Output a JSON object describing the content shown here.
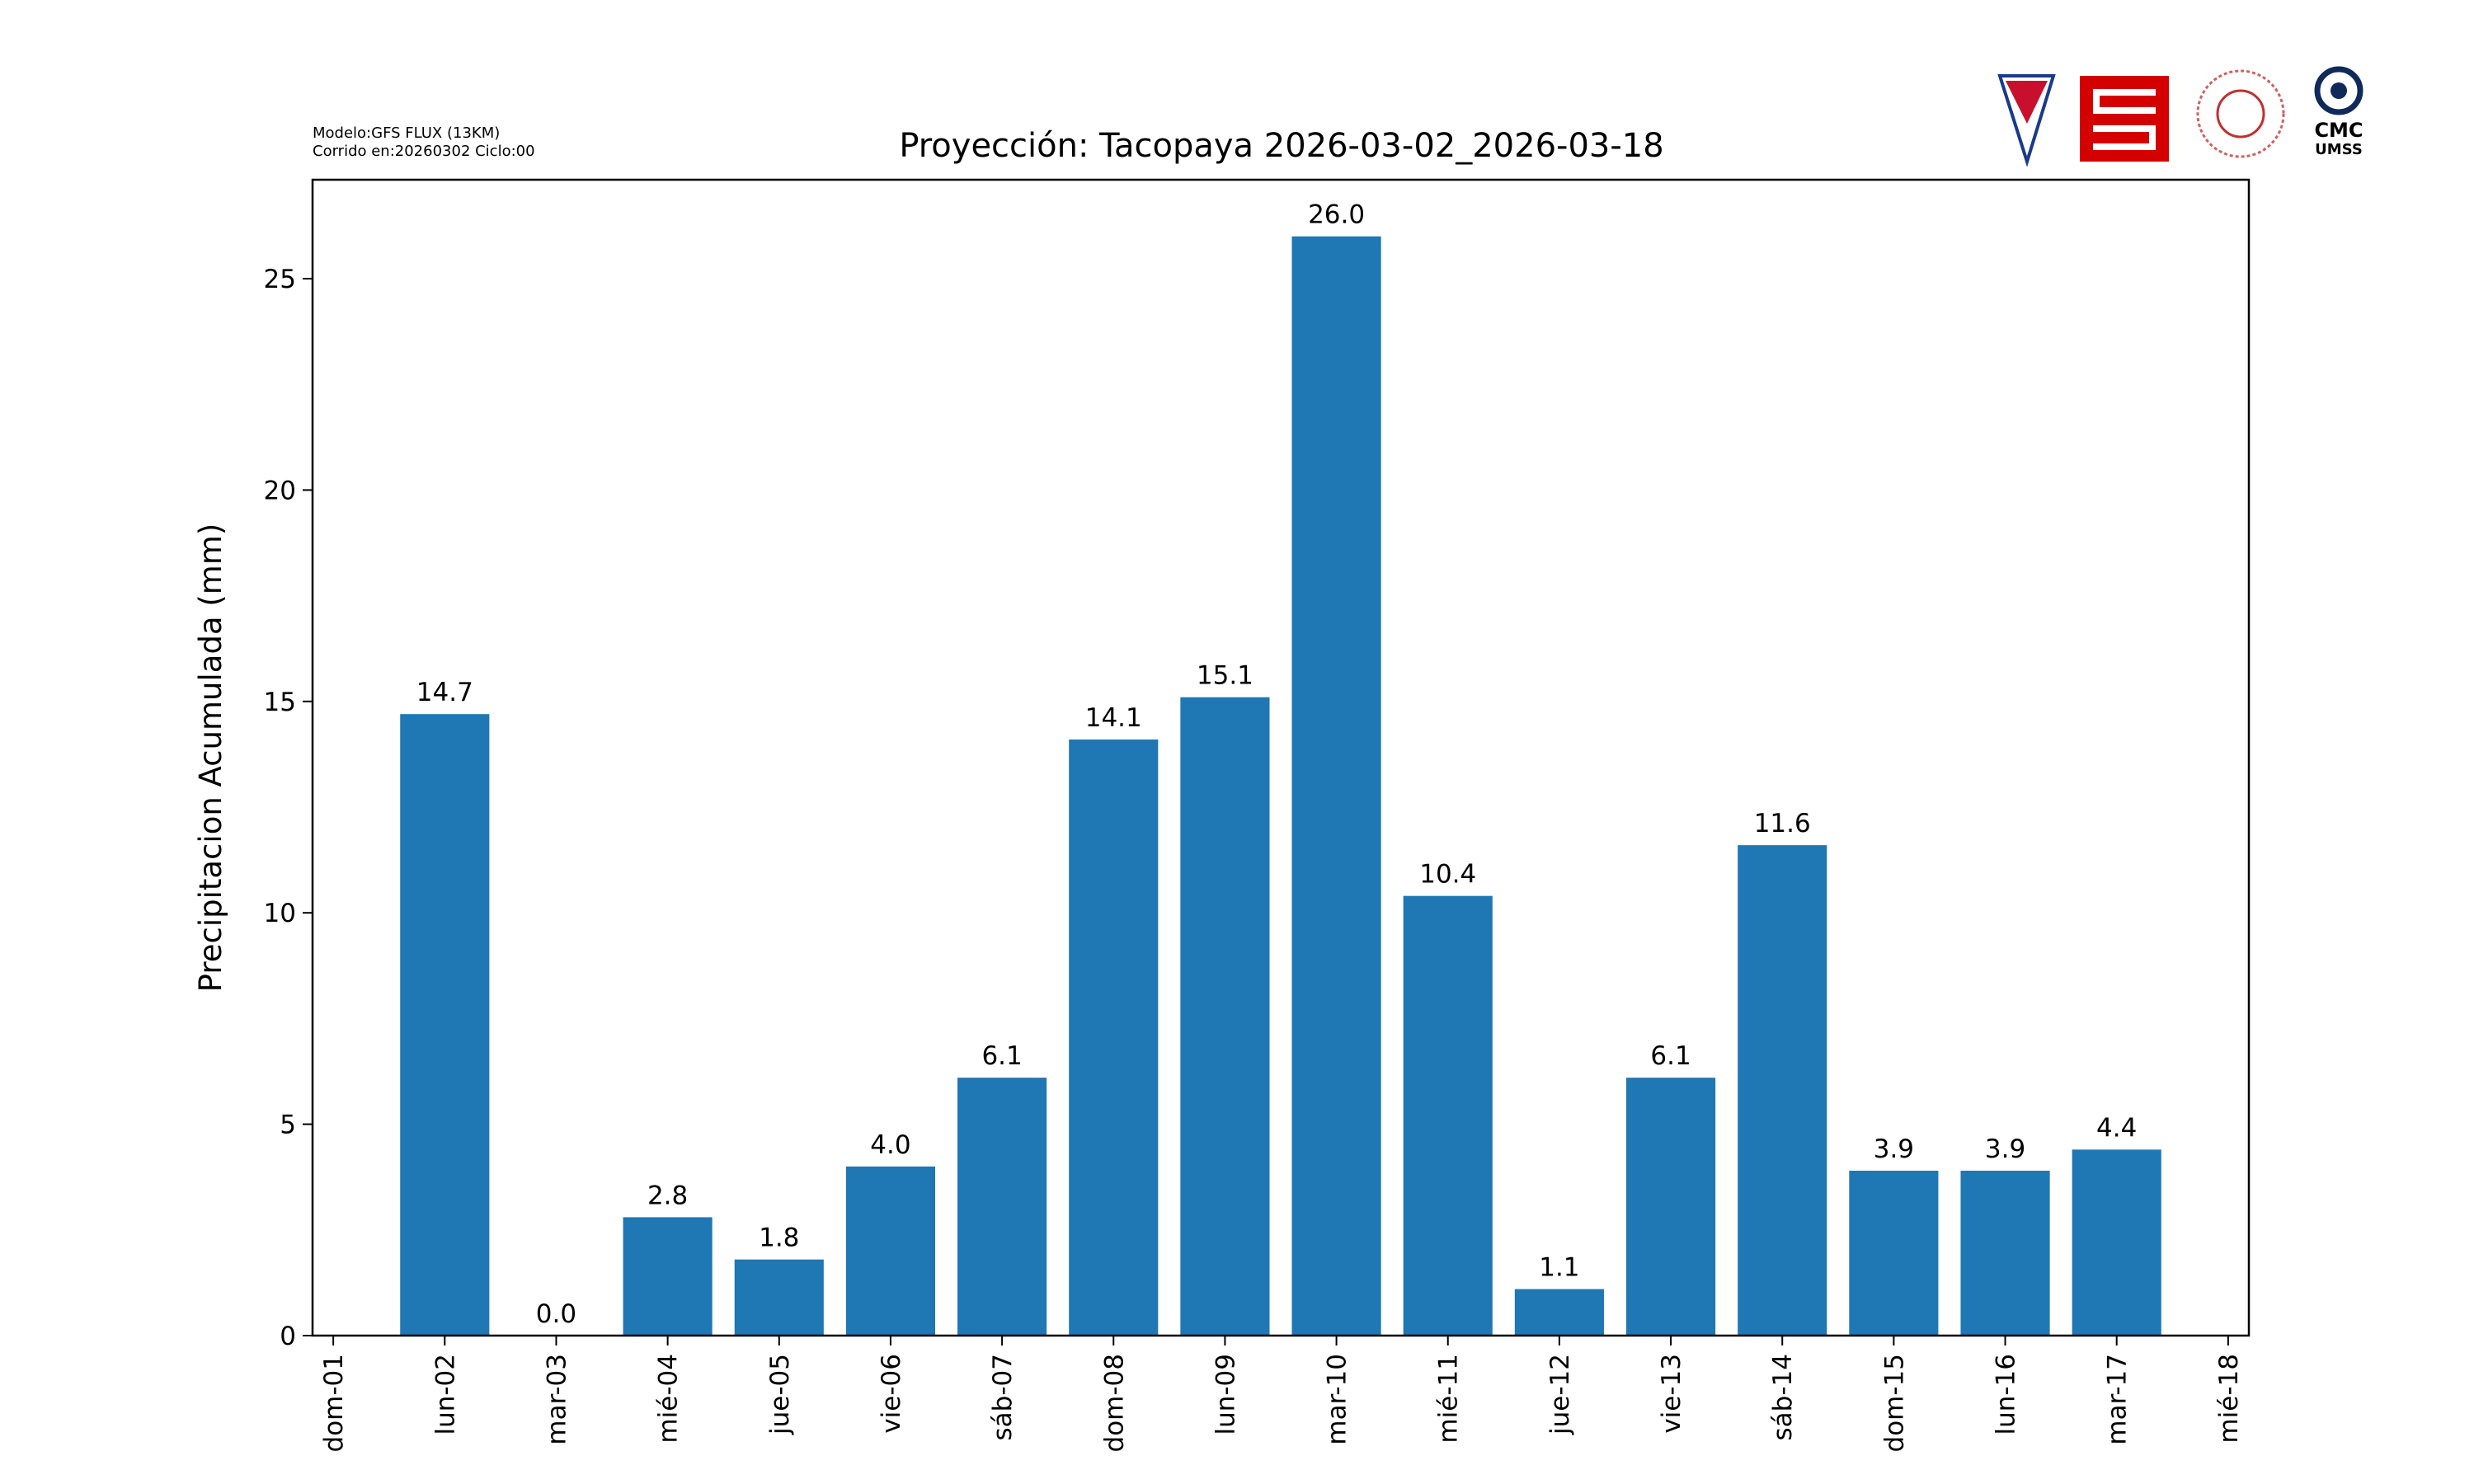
{
  "chart_data": {
    "type": "bar",
    "title": "Proyección: Tacopaya  2026-03-02_2026-03-18",
    "model_note": [
      "Modelo:GFS FLUX (13KM)",
      "Corrido en:20260302 Ciclo:00"
    ],
    "y_label": "Precipitacion Acumulada (mm)",
    "categories": [
      "dom-01",
      "lun-02",
      "mar-03",
      "mié-04",
      "jue-05",
      "vie-06",
      "sáb-07",
      "dom-08",
      "lun-09",
      "mar-10",
      "mié-11",
      "jue-12",
      "vie-13",
      "sáb-14",
      "dom-15",
      "lun-16",
      "mar-17",
      "mié-18"
    ],
    "values": [
      null,
      14.7,
      0.0,
      2.8,
      1.8,
      4.0,
      6.1,
      14.1,
      15.1,
      26.0,
      10.4,
      1.1,
      6.1,
      11.6,
      3.9,
      3.9,
      4.4,
      null
    ],
    "value_labels": [
      null,
      "14.7",
      "0.0",
      "2.8",
      "1.8",
      "4.0",
      "6.1",
      "14.1",
      "15.1",
      "26.0",
      "10.4",
      "1.1",
      "6.1",
      "11.6",
      "3.9",
      "3.9",
      "4.4",
      null
    ],
    "color": "#1f77b4",
    "ylim": [
      0,
      27.34
    ],
    "yticks": [
      0,
      5,
      10,
      15,
      20,
      25
    ],
    "logo_text": [
      "CMC",
      "UMSS"
    ]
  }
}
